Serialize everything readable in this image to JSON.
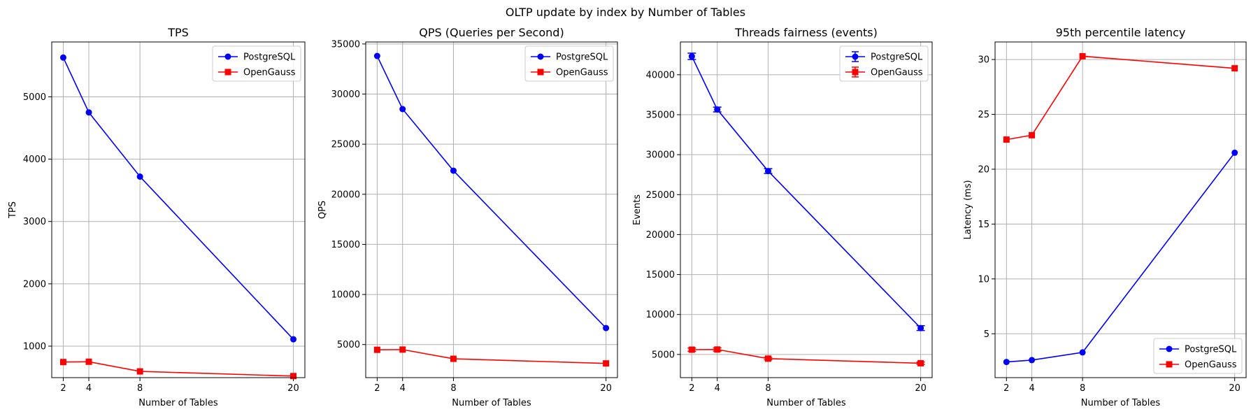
{
  "suptitle": "OLTP update by index by Number of Tables",
  "chart_data": [
    {
      "type": "line",
      "title": "TPS",
      "xlabel": "Number of Tables",
      "ylabel": "TPS",
      "x": [
        2,
        4,
        8,
        20
      ],
      "xticks": [
        2,
        4,
        8,
        20
      ],
      "yticks": [
        1000,
        2000,
        3000,
        4000,
        5000
      ],
      "xlim": [
        1.1,
        20.9
      ],
      "ylim": [
        495,
        5880
      ],
      "grid": true,
      "legend": "top-right",
      "series": [
        {
          "name": "PostgreSQL",
          "color": "#0000ff",
          "marker": "circle",
          "values": [
            5630,
            4750,
            3720,
            1110
          ]
        },
        {
          "name": "OpenGauss",
          "color": "#ff0000",
          "marker": "square",
          "values": [
            745,
            750,
            595,
            520
          ]
        }
      ]
    },
    {
      "type": "line",
      "title": "QPS (Queries per Second)",
      "xlabel": "Number of Tables",
      "ylabel": "QPS",
      "x": [
        2,
        4,
        8,
        20
      ],
      "xticks": [
        2,
        4,
        8,
        20
      ],
      "yticks": [
        5000,
        10000,
        15000,
        20000,
        25000,
        30000,
        35000
      ],
      "xlim": [
        1.1,
        20.9
      ],
      "ylim": [
        1700,
        35200
      ],
      "grid": true,
      "legend": "top-right",
      "series": [
        {
          "name": "PostgreSQL",
          "color": "#0000ff",
          "marker": "circle",
          "values": [
            33800,
            28500,
            22350,
            6650
          ]
        },
        {
          "name": "OpenGauss",
          "color": "#ff0000",
          "marker": "square",
          "values": [
            4480,
            4500,
            3580,
            3120
          ]
        }
      ]
    },
    {
      "type": "line",
      "title": "Threads fairness (events)",
      "xlabel": "Number of Tables",
      "ylabel": "Events",
      "x": [
        2,
        4,
        8,
        20
      ],
      "xticks": [
        2,
        4,
        8,
        20
      ],
      "yticks": [
        5000,
        10000,
        15000,
        20000,
        25000,
        30000,
        35000,
        40000
      ],
      "xlim": [
        1.1,
        20.9
      ],
      "ylim": [
        2100,
        44100
      ],
      "grid": true,
      "legend": "top-right",
      "error_bars": true,
      "series": [
        {
          "name": "PostgreSQL",
          "color": "#0000ff",
          "marker": "circle",
          "values": [
            42300,
            35650,
            27950,
            8300
          ],
          "errors": [
            400,
            300,
            300,
            300
          ]
        },
        {
          "name": "OpenGauss",
          "color": "#ff0000",
          "marker": "square",
          "values": [
            5600,
            5620,
            4480,
            3900
          ],
          "errors": [
            200,
            200,
            150,
            150
          ]
        }
      ]
    },
    {
      "type": "line",
      "title": "95th percentile latency",
      "xlabel": "Number of Tables",
      "ylabel": "Latency (ms)",
      "x": [
        2,
        4,
        8,
        20
      ],
      "xticks": [
        2,
        4,
        8,
        20
      ],
      "yticks": [
        5,
        10,
        15,
        20,
        25,
        30
      ],
      "xlim": [
        1.1,
        20.9
      ],
      "ylim": [
        1.0,
        31.6
      ],
      "grid": true,
      "legend": "bottom-right",
      "series": [
        {
          "name": "PostgreSQL",
          "color": "#0000ff",
          "marker": "circle",
          "values": [
            2.43,
            2.6,
            3.3,
            21.5
          ]
        },
        {
          "name": "OpenGauss",
          "color": "#ff0000",
          "marker": "square",
          "values": [
            22.7,
            23.1,
            30.3,
            29.2
          ]
        }
      ]
    }
  ]
}
